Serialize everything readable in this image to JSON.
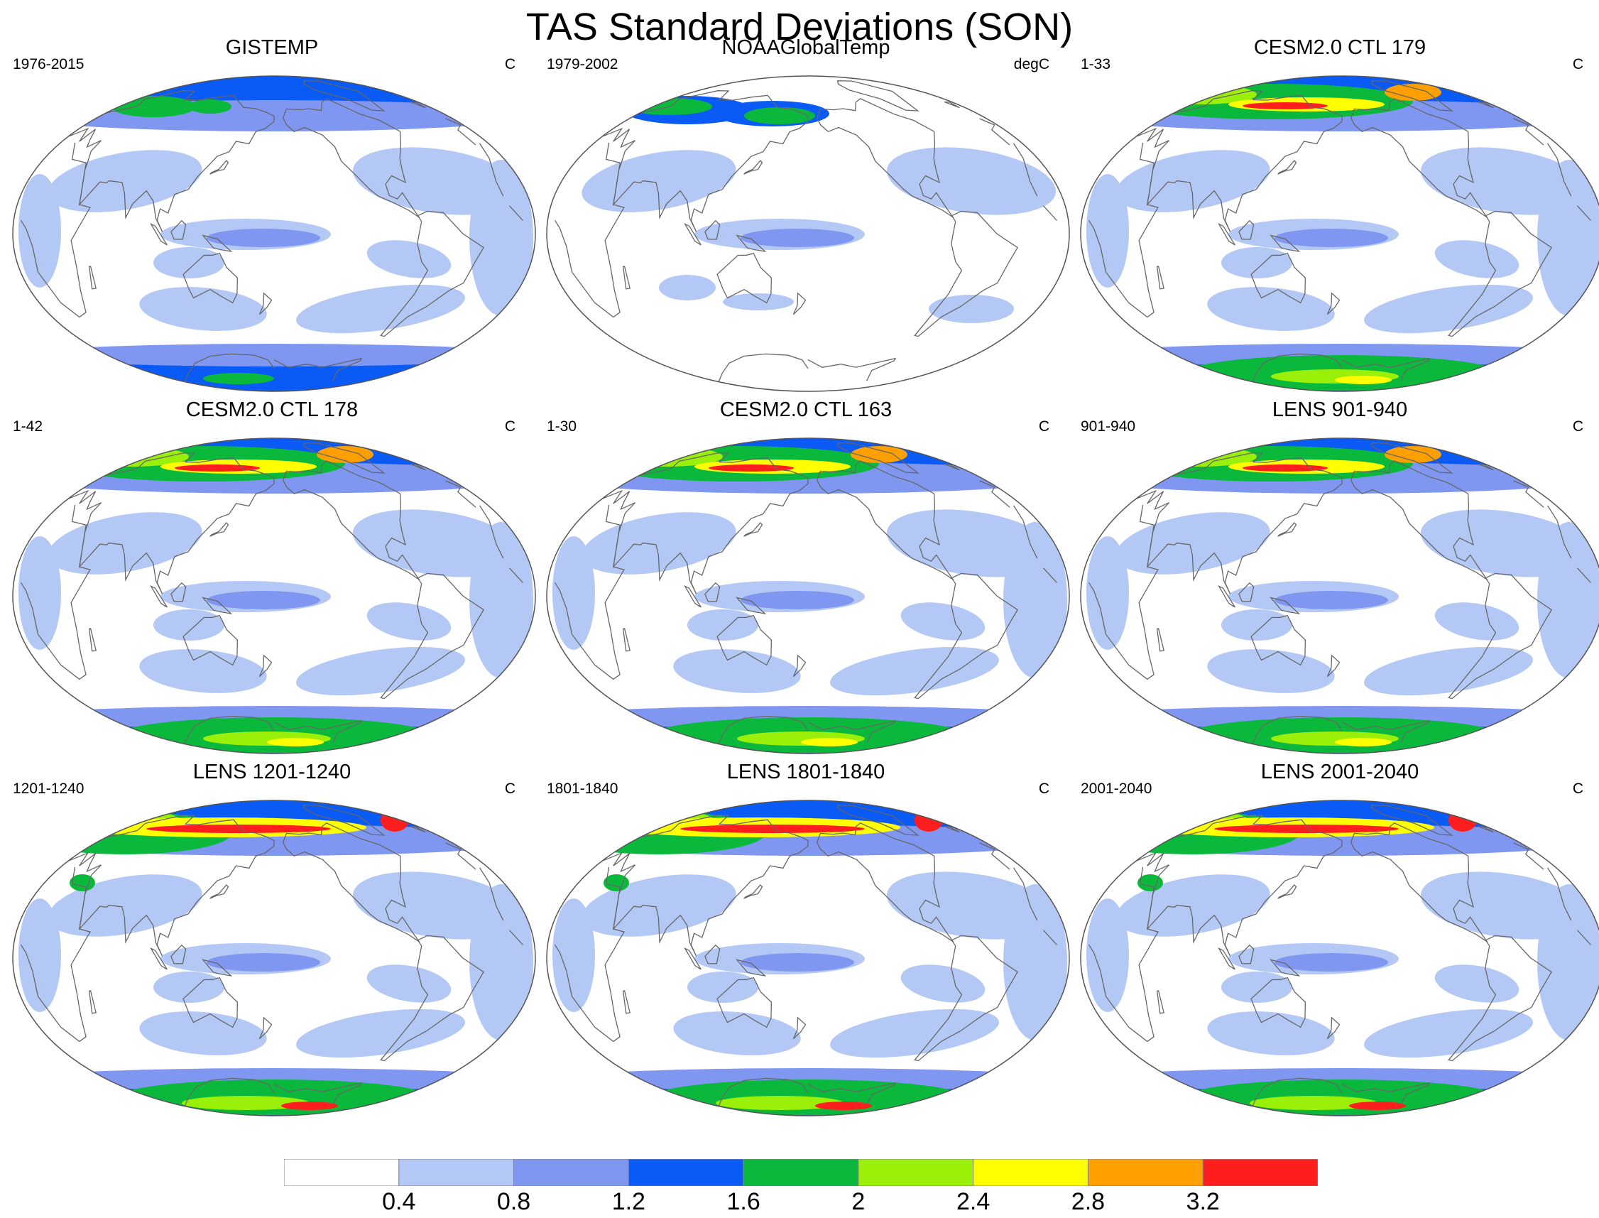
{
  "title": "TAS Standard Deviations (SON)",
  "panels": [
    {
      "title": "GISTEMP",
      "left": "1976-2015",
      "right": "C",
      "style": "obs"
    },
    {
      "title": "NOAAGlobalTemp",
      "left": "1979-2002",
      "right": "degC",
      "style": "noaa"
    },
    {
      "title": "CESM2.0 CTL 179",
      "left": "1-33",
      "right": "C",
      "style": "model"
    },
    {
      "title": "CESM2.0 CTL 178",
      "left": "1-42",
      "right": "C",
      "style": "model"
    },
    {
      "title": "CESM2.0 CTL 163",
      "left": "1-30",
      "right": "C",
      "style": "model"
    },
    {
      "title": "LENS 901-940",
      "left": "901-940",
      "right": "C",
      "style": "model"
    },
    {
      "title": "LENS 1201-1240",
      "left": "1201-1240",
      "right": "C",
      "style": "lens"
    },
    {
      "title": "LENS 1801-1840",
      "left": "1801-1840",
      "right": "C",
      "style": "lens"
    },
    {
      "title": "LENS 2001-2040",
      "left": "2001-2040",
      "right": "C",
      "style": "lens"
    }
  ],
  "colorbar": {
    "labels": [
      "0.4",
      "0.8",
      "1.2",
      "1.6",
      "2",
      "2.4",
      "2.8",
      "3.2"
    ],
    "colors": [
      "#ffffff",
      "#b4c8f6",
      "#8097f2",
      "#0a5af5",
      "#0ab93c",
      "#9bf00a",
      "#ffff00",
      "#ffa000",
      "#ff1e1e"
    ]
  }
}
